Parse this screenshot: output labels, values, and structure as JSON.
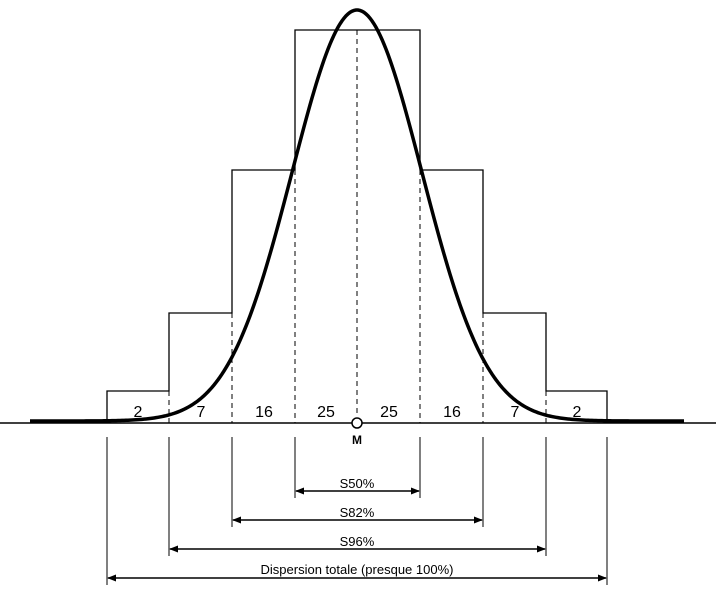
{
  "segments": [
    "2",
    "7",
    "16",
    "25",
    "25",
    "16",
    "7",
    "2"
  ],
  "center_label": "M",
  "dimensions": [
    {
      "label": "S50%"
    },
    {
      "label": "S82%"
    },
    {
      "label": "S96%"
    },
    {
      "label": "Dispersion totale (presque 100%)"
    }
  ]
}
